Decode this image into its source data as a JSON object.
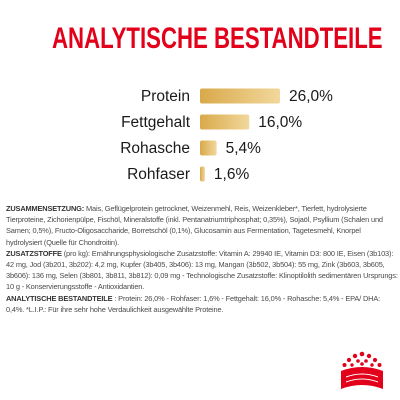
{
  "title": "ANALYTISCHE BESTANDTEILE",
  "chart_data": {
    "type": "bar",
    "orientation": "horizontal",
    "categories": [
      "Protein",
      "Fettgehalt",
      "Rohasche",
      "Rohfaser"
    ],
    "values": [
      26.0,
      16.0,
      5.4,
      1.6
    ],
    "value_labels": [
      "26,0%",
      "16,0%",
      "5,4%",
      "1,6%"
    ],
    "unit": "%",
    "title": "",
    "xlabel": "",
    "ylabel": "",
    "xlim": [
      0,
      26
    ],
    "grid": false,
    "legend": "none",
    "bar_color_start": "#d9a94a",
    "bar_color_end": "#f1d89c"
  },
  "composition": {
    "heading": "ZUSAMMENSETZUNG:",
    "body": "Mais, Geflügelprotein getrocknet, Weizenmehl, Reis, Weizenkleber*, Tierfett, hydrolysierte Tierproteine, Zichorienpülpe, Fischöl, Mineralstoffe (inkl. Pentanatriumtriphosphat; 0,35%), Sojaöl, Psyllium (Schalen und Samen; 0,5%), Fructo-Oligosaccharide, Borretschöl (0,1%), Glucosamin aus Fermentation, Tagetesmehl, Knorpel hydrolysiert (Quelle für Chondroitin).",
    "additives_heading": "ZUSATZSTOFFE",
    "additives_body": "(pro kg): Ernährungsphysiologische Zusatzstoffe: Vitamin A: 29940 IE, Vitamin D3: 800 IE, Eisen (3b103): 42 mg, Jod (3b201, 3b202): 4,2 mg, Kupfer (3b405, 3b406): 13 mg, Mangan (3b502, 3b504): 55 mg, Zink (3b603, 3b605, 3b606): 136 mg, Selen (3b801, 3b811, 3b812): 0,09 mg - Technologische Zusatzstoffe: Klinoptilolith sedimentären Ursprungs: 10 g - Konservierungsstoffe - Antioxidantien.",
    "analytic_heading": "ANALYTISCHE BESTANDTEILE",
    "analytic_body": ": Protein: 26,0% - Rohfaser: 1,6% - Fettgehalt: 16,0% - Rohasche: 5,4% - EPA/ DHA: 0,4%. *L.I.P.: Für ihre sehr hohe Verdaulichkeit ausgewählte Proteine."
  },
  "colors": {
    "brand_red": "#e2001a",
    "text_dark": "#1a1a1a",
    "text_body": "#4a4a4a"
  },
  "logo": {
    "icon": "royal-canin-crown-icon"
  }
}
